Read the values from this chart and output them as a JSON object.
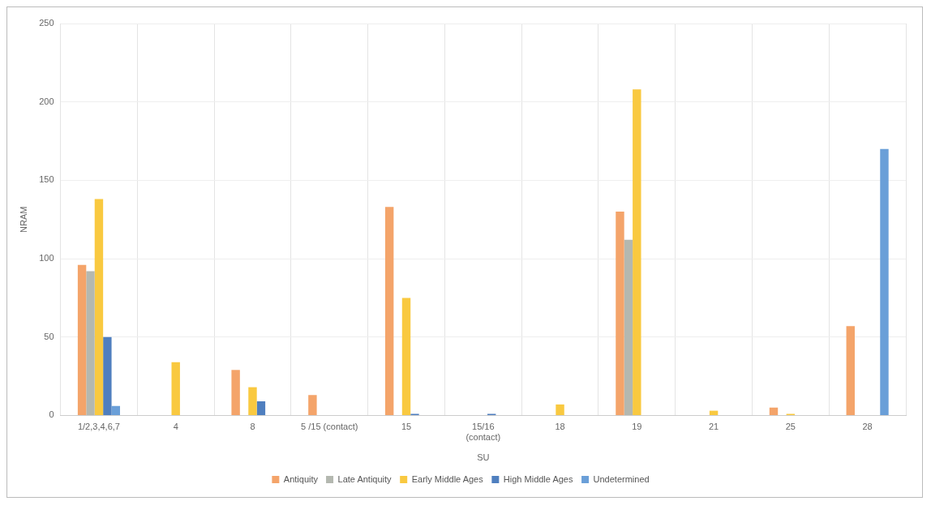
{
  "chart_data": {
    "type": "bar",
    "xlabel": "SU",
    "ylabel": "NRAM",
    "categories": [
      "1/2,3,4,6,7",
      "4",
      "8",
      "5 /15 (contact)",
      "15",
      "15/16\n(contact)",
      "18",
      "19",
      "21",
      "25",
      "28"
    ],
    "series": [
      {
        "name": "Antiquity",
        "color": "#f4a46a",
        "values": [
          96,
          null,
          29,
          13,
          133,
          null,
          null,
          130,
          null,
          5,
          57
        ]
      },
      {
        "name": "Late Antiquity",
        "color": "#b4b8b0",
        "values": [
          92,
          null,
          null,
          null,
          null,
          null,
          null,
          112,
          null,
          null,
          null
        ]
      },
      {
        "name": "Early Middle Ages",
        "color": "#f9c940",
        "values": [
          138,
          34,
          18,
          null,
          75,
          null,
          7,
          208,
          3,
          1,
          null
        ]
      },
      {
        "name": "High Middle Ages",
        "color": "#4f7fbf",
        "values": [
          50,
          null,
          9,
          null,
          1,
          1,
          null,
          null,
          null,
          null,
          null
        ]
      },
      {
        "name": "Undetermined",
        "color": "#6a9fd8",
        "values": [
          6,
          null,
          null,
          null,
          null,
          null,
          null,
          null,
          null,
          null,
          170
        ]
      }
    ],
    "ylim": [
      0,
      250
    ],
    "yticks": [
      0,
      50,
      100,
      150,
      200,
      250
    ],
    "grid": true,
    "legend": "bottom"
  }
}
